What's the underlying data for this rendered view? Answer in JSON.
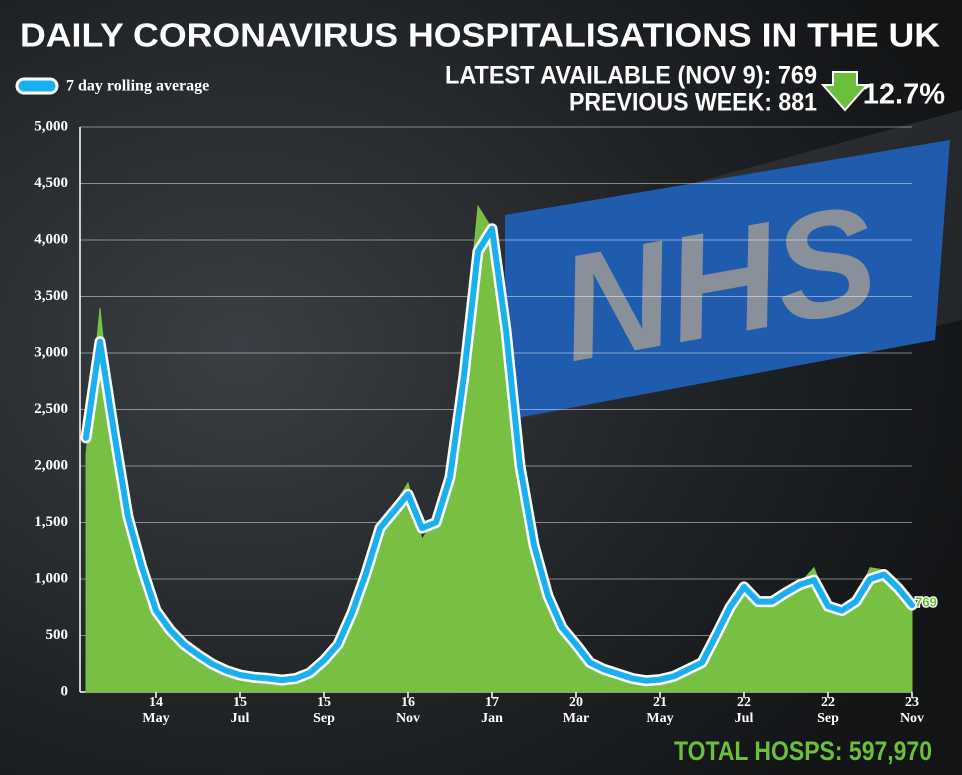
{
  "background_logo": "NHS",
  "chart_data": {
    "type": "area-line",
    "title": "DAILY CORONAVIRUS HOSPITALISATIONS  IN THE UK",
    "annotations": {
      "latest": "LATEST AVAILABLE (NOV 9): 769",
      "previous": "PREVIOUS WEEK: 881",
      "change": "12.7%",
      "total": "TOTAL HOSPS: 597,970"
    },
    "categories": [
      null,
      null,
      null,
      null,
      null,
      "14\nMay",
      null,
      null,
      null,
      null,
      null,
      "15\nJul",
      null,
      null,
      null,
      null,
      null,
      "15\nSep",
      null,
      null,
      null,
      null,
      null,
      "16\nNov",
      null,
      null,
      null,
      null,
      null,
      "17\nJan",
      null,
      null,
      null,
      null,
      null,
      "20\nMar",
      null,
      null,
      null,
      null,
      null,
      "21\nMay",
      null,
      null,
      null,
      null,
      null,
      "22\nJul",
      null,
      null,
      null,
      null,
      null,
      "22\nSep",
      null,
      null,
      null,
      null,
      null,
      "23\nNov"
    ],
    "series": [
      {
        "color": "#78c043",
        "values": [
          2100,
          3400,
          2200,
          1500,
          1050,
          760,
          560,
          430,
          320,
          240,
          180,
          150,
          130,
          115,
          110,
          125,
          180,
          300,
          450,
          750,
          1120,
          1500,
          1650,
          1850,
          1350,
          1550,
          2050,
          3000,
          4300,
          4100,
          3050,
          1900,
          1250,
          800,
          540,
          400,
          250,
          190,
          150,
          115,
          100,
          105,
          130,
          190,
          250,
          520,
          790,
          940,
          780,
          790,
          900,
          960,
          1100,
          780,
          700,
          810,
          1100,
          1080,
          950,
          730
        ]
      },
      {
        "name": "7 day rolling average",
        "color": "#1ab0f0",
        "values": [
          2250,
          3100,
          2300,
          1550,
          1100,
          720,
          550,
          420,
          330,
          250,
          190,
          150,
          130,
          120,
          105,
          120,
          170,
          280,
          420,
          700,
          1050,
          1450,
          1600,
          1750,
          1450,
          1500,
          1900,
          2800,
          3900,
          4100,
          3200,
          2000,
          1300,
          850,
          570,
          420,
          260,
          200,
          160,
          120,
          100,
          110,
          140,
          200,
          260,
          500,
          750,
          930,
          800,
          800,
          880,
          950,
          990,
          760,
          720,
          800,
          1000,
          1040,
          920,
          769
        ]
      }
    ],
    "ylim": [
      0,
      5000
    ],
    "yticks": [
      0,
      500,
      {
        "value": 1000,
        "label": "1,000"
      },
      {
        "value": 1500,
        "label": "1,500"
      },
      {
        "value": 2000,
        "label": "2,000"
      },
      {
        "value": 2500,
        "label": "2,500"
      },
      {
        "value": 3000,
        "label": "3,000"
      },
      {
        "value": 3500,
        "label": "3,500"
      },
      {
        "value": 4000,
        "label": "4,000"
      },
      {
        "value": 4500,
        "label": "4,500"
      },
      {
        "value": 5000,
        "label": "5,000"
      }
    ],
    "grid": true
  }
}
